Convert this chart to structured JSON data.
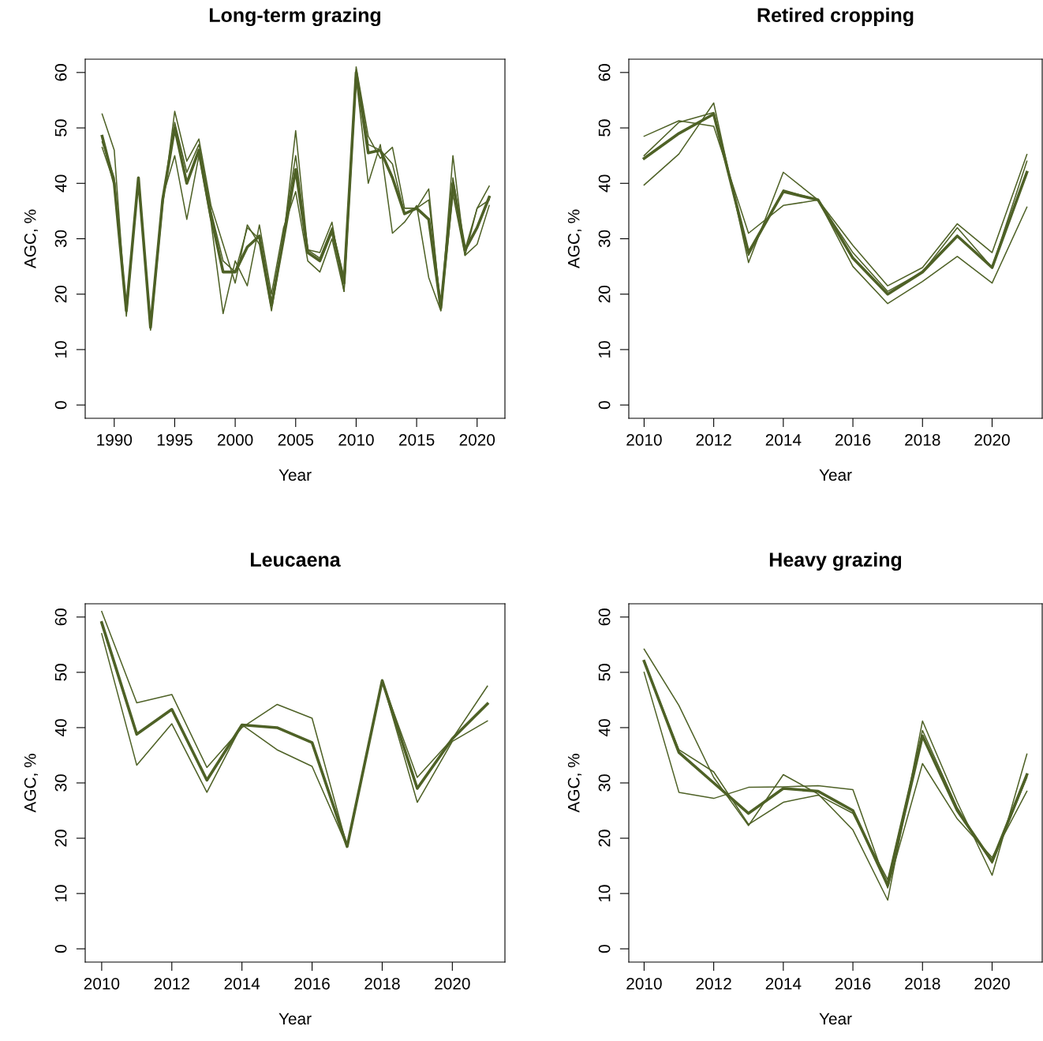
{
  "chart_data": [
    {
      "type": "line",
      "title": "Long-term grazing",
      "xlabel": "Year",
      "ylabel": "AGC, %",
      "x": [
        1989,
        1990,
        1991,
        1992,
        1993,
        1994,
        1995,
        1996,
        1997,
        1998,
        1999,
        2000,
        2001,
        2002,
        2003,
        2004,
        2005,
        2006,
        2007,
        2008,
        2009,
        2010,
        2011,
        2012,
        2013,
        2014,
        2015,
        2016,
        2017,
        2018,
        2019,
        2020,
        2021
      ],
      "xlim": [
        1987.6,
        2022.3
      ],
      "xticks": [
        1990,
        1995,
        2000,
        2005,
        2010,
        2015,
        2020
      ],
      "ylim": [
        -2.4,
        62.4
      ],
      "yticks": [
        0,
        10,
        20,
        30,
        40,
        50,
        60
      ],
      "grid": false,
      "legend": false,
      "marker": "none",
      "line_style": "solid",
      "series": [
        {
          "color": "#4e6126",
          "values": [
            48.5,
            40,
            17,
            41,
            14,
            37,
            50,
            40,
            46,
            34,
            24,
            24,
            28.5,
            30.5,
            18,
            30,
            42.5,
            27.5,
            26,
            31.5,
            22,
            60,
            45.5,
            46,
            41,
            34.5,
            35.5,
            33.5,
            17.5,
            40,
            28,
            32,
            37.5
          ]
        },
        {
          "color": "#4e6126",
          "values": [
            52.5,
            46,
            16,
            41,
            13.5,
            36,
            53,
            44,
            48,
            36,
            29,
            22,
            32.5,
            29,
            17,
            30,
            49.5,
            28,
            27.5,
            33,
            20.5,
            61,
            48.5,
            44.5,
            46.5,
            35.5,
            35.5,
            39,
            17,
            45,
            27,
            35.5,
            39.5
          ]
        },
        {
          "color": "#4e6126",
          "values": [
            46.5,
            40,
            17.5,
            40.5,
            14,
            37.5,
            45,
            33.5,
            45,
            33,
            16.5,
            26,
            21.5,
            32.5,
            20,
            32,
            38.5,
            26,
            24,
            30,
            20.5,
            59,
            40,
            47,
            31,
            33,
            36,
            23,
            17,
            38,
            27,
            29,
            36
          ]
        },
        {
          "color": "#4e6126",
          "values": [
            47.5,
            41,
            17,
            41,
            14,
            36.5,
            51,
            42,
            47,
            35,
            26,
            24,
            32,
            30,
            18,
            31,
            45,
            28,
            26.5,
            32,
            23,
            60.5,
            47,
            46,
            43.5,
            34.5,
            35.5,
            37,
            18,
            41,
            28,
            35.5,
            37
          ]
        }
      ]
    },
    {
      "type": "line",
      "title": "Retired cropping",
      "xlabel": "Year",
      "ylabel": "AGC, %",
      "x": [
        2010,
        2011,
        2012,
        2013,
        2014,
        2015,
        2016,
        2017,
        2018,
        2019,
        2020,
        2021
      ],
      "xlim": [
        2009.56,
        2021.44
      ],
      "xticks": [
        2010,
        2012,
        2014,
        2016,
        2018,
        2020
      ],
      "ylim": [
        -2.4,
        62.4
      ],
      "yticks": [
        0,
        10,
        20,
        30,
        40,
        50,
        60
      ],
      "grid": false,
      "legend": false,
      "marker": "none",
      "line_style": "solid",
      "series": [
        {
          "color": "#4e6126",
          "values": [
            44.5,
            49,
            52.5,
            27.5,
            38.5,
            37,
            26.5,
            20,
            24,
            30.5,
            24.8,
            42
          ]
        },
        {
          "color": "#4e6126",
          "values": [
            48.5,
            51.3,
            50.3,
            31,
            36,
            37,
            25,
            18.3,
            22.3,
            26.8,
            22,
            35.7
          ]
        },
        {
          "color": "#4e6126",
          "values": [
            39.7,
            45.3,
            54.5,
            25.7,
            42,
            37,
            28.8,
            21.5,
            24.8,
            32.7,
            27.5,
            45.2
          ]
        },
        {
          "color": "#4e6126",
          "values": [
            45,
            51,
            52.8,
            27,
            38.8,
            37,
            27.5,
            20.5,
            24,
            32,
            24.8,
            44
          ]
        }
      ]
    },
    {
      "type": "line",
      "title": "Leucaena",
      "xlabel": "Year",
      "ylabel": "AGC, %",
      "x": [
        2010,
        2011,
        2012,
        2013,
        2014,
        2015,
        2016,
        2017,
        2018,
        2019,
        2020,
        2021
      ],
      "xlim": [
        2009.53,
        2021.5
      ],
      "xticks": [
        2010,
        2012,
        2014,
        2016,
        2018,
        2020
      ],
      "ylim": [
        -2.4,
        62.4
      ],
      "yticks": [
        0,
        10,
        20,
        30,
        40,
        50,
        60
      ],
      "grid": false,
      "legend": false,
      "marker": "none",
      "line_style": "solid",
      "series": [
        {
          "color": "#4e6126",
          "values": [
            59,
            38.8,
            43.3,
            30.5,
            40.5,
            40,
            37.3,
            18.5,
            48.5,
            29,
            38,
            44.3
          ]
        },
        {
          "color": "#4e6126",
          "values": [
            61,
            44.5,
            46,
            32.8,
            40,
            44.2,
            41.7,
            18.5,
            48.5,
            31,
            38,
            47.5
          ]
        },
        {
          "color": "#4e6126",
          "values": [
            57,
            33.2,
            40.7,
            28.3,
            40.5,
            36,
            33,
            18.5,
            48.5,
            26.5,
            37.5,
            41.2
          ]
        }
      ]
    },
    {
      "type": "line",
      "title": "Heavy grazing",
      "xlabel": "Year",
      "ylabel": "AGC, %",
      "x": [
        2010,
        2011,
        2012,
        2013,
        2014,
        2015,
        2016,
        2017,
        2018,
        2019,
        2020,
        2021
      ],
      "xlim": [
        2009.56,
        2021.44
      ],
      "xticks": [
        2010,
        2012,
        2014,
        2016,
        2018,
        2020
      ],
      "ylim": [
        -2.4,
        62.4
      ],
      "yticks": [
        0,
        10,
        20,
        30,
        40,
        50,
        60
      ],
      "grid": false,
      "legend": false,
      "marker": "none",
      "line_style": "solid",
      "series": [
        {
          "color": "#4e6126",
          "values": [
            52,
            35.5,
            30,
            24.5,
            29,
            28.5,
            25,
            11.5,
            38.5,
            25,
            15.8,
            31.5
          ]
        },
        {
          "color": "#4e6126",
          "values": [
            54.2,
            44,
            31,
            22.3,
            31.5,
            28,
            21.5,
            8.8,
            41.2,
            26.5,
            13.3,
            35.2
          ]
        },
        {
          "color": "#4e6126",
          "values": [
            50,
            28.3,
            27.2,
            29.2,
            29.3,
            29.5,
            28.8,
            11,
            33.5,
            23.5,
            16.5,
            28.5
          ]
        },
        {
          "color": "#4e6126",
          "values": [
            52,
            36,
            32,
            22.5,
            26.5,
            27.8,
            24.5,
            12.5,
            39.5,
            25.5,
            15.5,
            31
          ]
        }
      ]
    }
  ]
}
